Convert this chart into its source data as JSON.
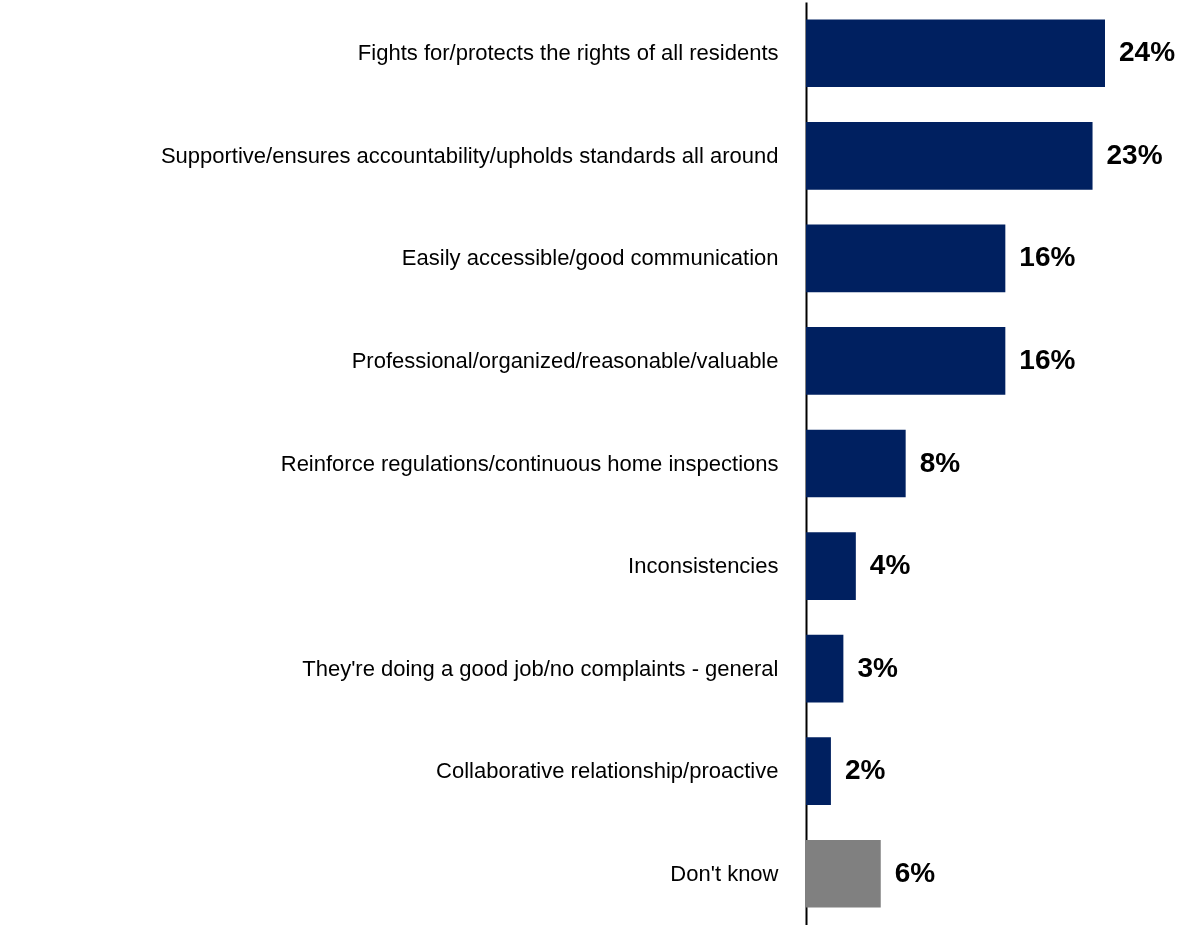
{
  "chart_data": {
    "type": "bar",
    "orientation": "horizontal",
    "categories": [
      "Fights for/protects the rights of all residents",
      "Supportive/ensures accountability/upholds standards all around",
      "Easily accessible/good communication",
      "Professional/organized/reasonable/valuable",
      "Reinforce regulations/continuous home inspections",
      "Inconsistencies",
      "They're doing a good job/no complaints - general",
      "Collaborative relationship/proactive",
      "Don't know"
    ],
    "values": [
      24,
      23,
      16,
      16,
      8,
      4,
      3,
      2,
      6
    ],
    "value_labels": [
      "24%",
      "23%",
      "16%",
      "16%",
      "8%",
      "4%",
      "3%",
      "2%",
      "6%"
    ],
    "colors": [
      "#002060",
      "#002060",
      "#002060",
      "#002060",
      "#002060",
      "#002060",
      "#002060",
      "#002060",
      "#808080"
    ],
    "tick_labels": "y"
  }
}
